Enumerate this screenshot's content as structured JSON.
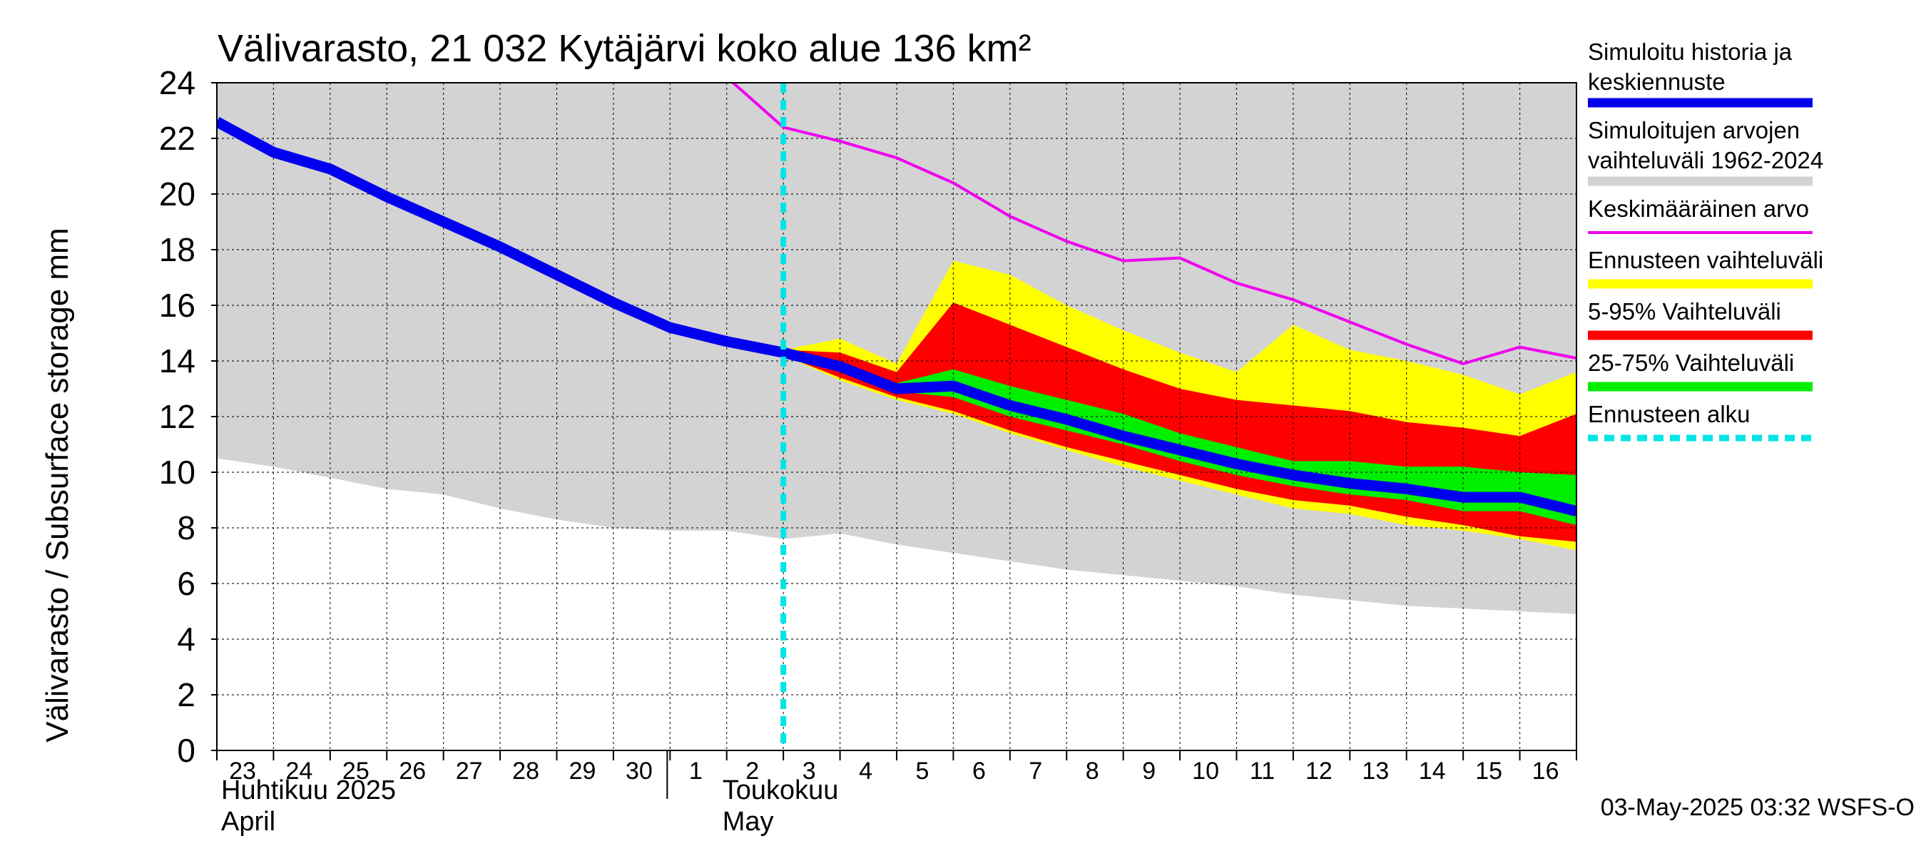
{
  "chart_data": {
    "type": "area",
    "title": "Välivarasto, 21 032 Kytäjärvi koko alue 136 km²",
    "ylabel": "Välivarasto / Subsurface storage  mm",
    "ylim": [
      0,
      24
    ],
    "yticks": [
      0,
      2,
      4,
      6,
      8,
      10,
      12,
      14,
      16,
      18,
      20,
      22,
      24
    ],
    "grid": true,
    "legend_position": "right",
    "x_dates": [
      "2025-04-23",
      "2025-04-24",
      "2025-04-25",
      "2025-04-26",
      "2025-04-27",
      "2025-04-28",
      "2025-04-29",
      "2025-04-30",
      "2025-05-01",
      "2025-05-02",
      "2025-05-03",
      "2025-05-04",
      "2025-05-05",
      "2025-05-06",
      "2025-05-07",
      "2025-05-08",
      "2025-05-09",
      "2025-05-10",
      "2025-05-11",
      "2025-05-12",
      "2025-05-13",
      "2025-05-14",
      "2025-05-15",
      "2025-05-16",
      "2025-05-17"
    ],
    "xtick_labels": [
      "23",
      "24",
      "25",
      "26",
      "27",
      "28",
      "29",
      "30",
      "1",
      "2",
      "3",
      "4",
      "5",
      "6",
      "7",
      "8",
      "9",
      "10",
      "11",
      "12",
      "13",
      "14",
      "15",
      "16"
    ],
    "month_labels": [
      {
        "fi": "Huhtikuu  2025",
        "en": "April",
        "date": "2025-04-23"
      },
      {
        "fi": "Toukokuu",
        "en": "May",
        "date": "2025-05-02"
      }
    ],
    "forecast_start": "2025-05-03",
    "history": {
      "name": "Simuloitu historia ja keskiennuste",
      "x": [
        "2025-04-23",
        "2025-04-24",
        "2025-04-25",
        "2025-04-26",
        "2025-04-27",
        "2025-04-28",
        "2025-04-29",
        "2025-04-30",
        "2025-05-01",
        "2025-05-02",
        "2025-05-03",
        "2025-05-04",
        "2025-05-05",
        "2025-05-06",
        "2025-05-07",
        "2025-05-08",
        "2025-05-09",
        "2025-05-10",
        "2025-05-11",
        "2025-05-12",
        "2025-05-13",
        "2025-05-14",
        "2025-05-15",
        "2025-05-16",
        "2025-05-17"
      ],
      "y": [
        22.6,
        21.5,
        20.9,
        19.9,
        19.0,
        18.1,
        17.1,
        16.1,
        15.2,
        14.7,
        14.3,
        13.8,
        13.0,
        13.1,
        12.4,
        11.9,
        11.3,
        10.8,
        10.3,
        9.9,
        9.6,
        9.4,
        9.1,
        9.1,
        8.6
      ]
    },
    "hist_range": {
      "name": "Simuloitujen arvojen vaihteluväli 1962-2024",
      "x": [
        "2025-04-23",
        "2025-04-24",
        "2025-04-25",
        "2025-04-26",
        "2025-04-27",
        "2025-04-28",
        "2025-04-29",
        "2025-04-30",
        "2025-05-01",
        "2025-05-02",
        "2025-05-03",
        "2025-05-04",
        "2025-05-05",
        "2025-05-06",
        "2025-05-07",
        "2025-05-08",
        "2025-05-09",
        "2025-05-10",
        "2025-05-11",
        "2025-05-12",
        "2025-05-13",
        "2025-05-14",
        "2025-05-15",
        "2025-05-16",
        "2025-05-17"
      ],
      "upper": [
        24,
        24,
        24,
        24,
        24,
        24,
        24,
        24,
        24,
        24,
        24,
        24,
        24,
        24,
        24,
        24,
        24,
        24,
        24,
        24,
        24,
        24,
        24,
        24,
        24
      ],
      "lower": [
        10.5,
        10.2,
        9.8,
        9.4,
        9.2,
        8.7,
        8.3,
        8.0,
        7.9,
        7.9,
        7.6,
        7.8,
        7.4,
        7.1,
        6.8,
        6.5,
        6.3,
        6.1,
        5.9,
        5.6,
        5.4,
        5.2,
        5.1,
        5.0,
        4.9
      ]
    },
    "mean": {
      "name": "Keskimääräinen arvo",
      "x": [
        "2025-05-02",
        "2025-05-03",
        "2025-05-04",
        "2025-05-05",
        "2025-05-06",
        "2025-05-07",
        "2025-05-08",
        "2025-05-09",
        "2025-05-10",
        "2025-05-11",
        "2025-05-12",
        "2025-05-13",
        "2025-05-14",
        "2025-05-15",
        "2025-05-16",
        "2025-05-17"
      ],
      "y": [
        24.2,
        22.4,
        21.9,
        21.3,
        20.4,
        19.2,
        18.3,
        17.6,
        17.7,
        16.8,
        16.2,
        15.4,
        14.6,
        13.9,
        14.5,
        14.1
      ]
    },
    "forecast_x": [
      "2025-05-03",
      "2025-05-04",
      "2025-05-05",
      "2025-05-06",
      "2025-05-07",
      "2025-05-08",
      "2025-05-09",
      "2025-05-10",
      "2025-05-11",
      "2025-05-12",
      "2025-05-13",
      "2025-05-14",
      "2025-05-15",
      "2025-05-16",
      "2025-05-17"
    ],
    "ens_range": {
      "name": "Ennusteen vaihteluväli",
      "upper": [
        14.4,
        14.8,
        13.9,
        17.6,
        17.1,
        16.0,
        15.1,
        14.3,
        13.6,
        15.3,
        14.4,
        14.0,
        13.5,
        12.8,
        13.6
      ],
      "lower": [
        14.2,
        13.3,
        12.6,
        12.1,
        11.4,
        10.8,
        10.2,
        9.7,
        9.2,
        8.7,
        8.5,
        8.1,
        7.9,
        7.6,
        7.2
      ]
    },
    "p5_95": {
      "name": "5-95% Vaihteluväli",
      "upper": [
        14.4,
        14.3,
        13.6,
        16.1,
        15.3,
        14.5,
        13.7,
        13.0,
        12.6,
        12.4,
        12.2,
        11.8,
        11.6,
        11.3,
        12.1
      ],
      "lower": [
        14.2,
        13.4,
        12.7,
        12.2,
        11.5,
        10.9,
        10.4,
        9.9,
        9.4,
        9.0,
        8.8,
        8.4,
        8.1,
        7.7,
        7.5
      ]
    },
    "p25_75": {
      "name": "25-75% Vaihteluväli",
      "upper": [
        14.3,
        14.0,
        13.2,
        13.7,
        13.1,
        12.6,
        12.1,
        11.4,
        10.9,
        10.4,
        10.4,
        10.2,
        10.2,
        10.0,
        9.9
      ],
      "lower": [
        14.2,
        13.6,
        12.9,
        12.7,
        12.0,
        11.5,
        11.0,
        10.4,
        9.9,
        9.5,
        9.2,
        9.0,
        8.6,
        8.6,
        8.1
      ]
    },
    "forecast_start_legend": "Ennusteen alku",
    "colors": {
      "history": "#0000ee",
      "hist_range": "#d3d3d3",
      "mean": "#ee00ee",
      "ens_range": "#ffff00",
      "p5_95": "#ff0000",
      "p25_75": "#00ee00",
      "forecast_start": "#00e5e5"
    }
  },
  "legend": {
    "items": [
      {
        "line1": "Simuloitu historia ja",
        "line2": "keskiennuste",
        "color": "#0000ee",
        "style": "solid",
        "thick": true
      },
      {
        "line1": "Simuloitujen arvojen",
        "line2": "vaihteluväli 1962-2024",
        "color": "#d3d3d3",
        "style": "solid",
        "thick": true
      },
      {
        "line1": "Keskimääräinen arvo",
        "line2": "",
        "color": "#ee00ee",
        "style": "solid",
        "thick": false
      },
      {
        "line1": "Ennusteen vaihteluväli",
        "line2": "",
        "color": "#ffff00",
        "style": "solid",
        "thick": true
      },
      {
        "line1": "5-95% Vaihteluväli",
        "line2": "",
        "color": "#ff0000",
        "style": "solid",
        "thick": true
      },
      {
        "line1": "25-75% Vaihteluväli",
        "line2": "",
        "color": "#00ee00",
        "style": "solid",
        "thick": true
      },
      {
        "line1": "Ennusteen alku",
        "line2": "",
        "color": "#00e5e5",
        "style": "dashed",
        "thick": true
      }
    ]
  },
  "footer": {
    "timestamp": "03-May-2025 03:32 WSFS-O"
  }
}
